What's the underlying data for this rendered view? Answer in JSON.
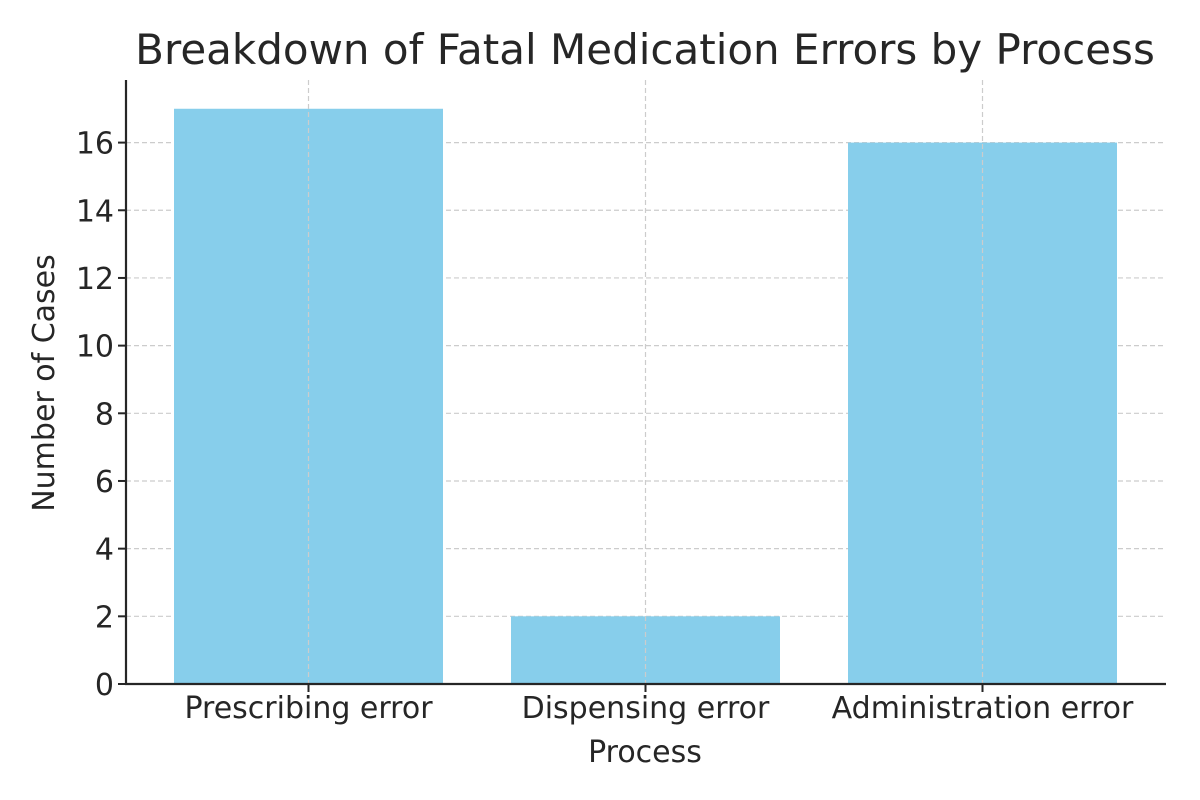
{
  "chart_data": {
    "type": "bar",
    "title": "Breakdown of Fatal Medication Errors by Process",
    "xlabel": "Process",
    "ylabel": "Number of Cases",
    "categories": [
      "Prescribing error",
      "Dispensing error",
      "Administration error"
    ],
    "values": [
      17,
      2,
      16
    ],
    "ylim": [
      0,
      17.85
    ],
    "yticks": [
      0,
      2,
      4,
      6,
      8,
      10,
      12,
      14,
      16
    ],
    "grid": true,
    "bar_color": "#87ceeb"
  }
}
